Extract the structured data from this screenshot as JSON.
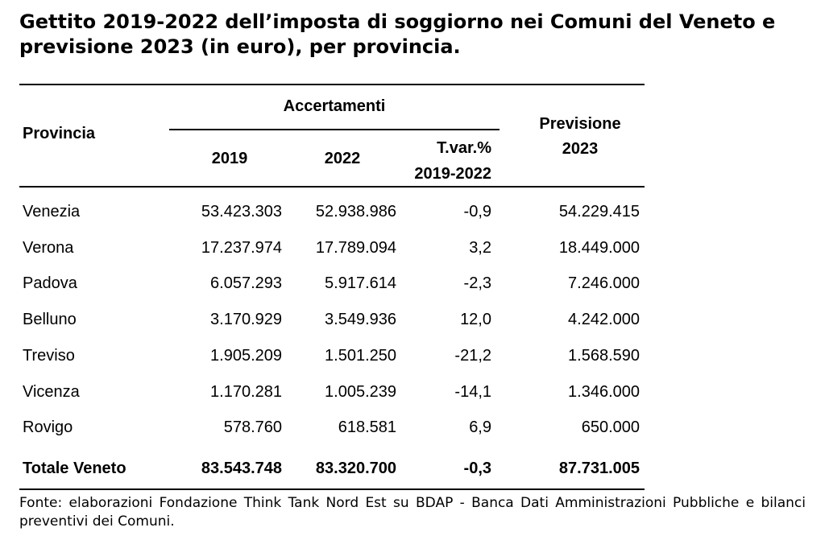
{
  "title": "Gettito 2019-2022 dell’imposta di soggiorno nei Comuni del Veneto e previsione 2023 (in euro), per provincia.",
  "headers": {
    "provincia": "Provincia",
    "accertamenti": "Accertamenti",
    "y2019": "2019",
    "y2022": "2022",
    "tvar_line1": "T.var.%",
    "tvar_line2": "2019-2022",
    "previsione_line1": "Previsione",
    "previsione_line2": "2023"
  },
  "rows": [
    {
      "provincia": "Venezia",
      "y2019": "53.423.303",
      "y2022": "52.938.986",
      "tvar": "-0,9",
      "previsione": "54.229.415"
    },
    {
      "provincia": "Verona",
      "y2019": "17.237.974",
      "y2022": "17.789.094",
      "tvar": "3,2",
      "previsione": "18.449.000"
    },
    {
      "provincia": "Padova",
      "y2019": "6.057.293",
      "y2022": "5.917.614",
      "tvar": "-2,3",
      "previsione": "7.246.000"
    },
    {
      "provincia": "Belluno",
      "y2019": "3.170.929",
      "y2022": "3.549.936",
      "tvar": "12,0",
      "previsione": "4.242.000"
    },
    {
      "provincia": "Treviso",
      "y2019": "1.905.209",
      "y2022": "1.501.250",
      "tvar": "-21,2",
      "previsione": "1.568.590"
    },
    {
      "provincia": "Vicenza",
      "y2019": "1.170.281",
      "y2022": "1.005.239",
      "tvar": "-14,1",
      "previsione": "1.346.000"
    },
    {
      "provincia": "Rovigo",
      "y2019": "578.760",
      "y2022": "618.581",
      "tvar": "6,9",
      "previsione": "650.000"
    }
  ],
  "total": {
    "provincia": "Totale Veneto",
    "y2019": "83.543.748",
    "y2022": "83.320.700",
    "tvar": "-0,3",
    "previsione": "87.731.005"
  },
  "source": "Fonte: elaborazioni Fondazione Think Tank Nord Est su BDAP - Banca Dati Amministrazioni Pubbliche e bilanci preventivi dei Comuni."
}
